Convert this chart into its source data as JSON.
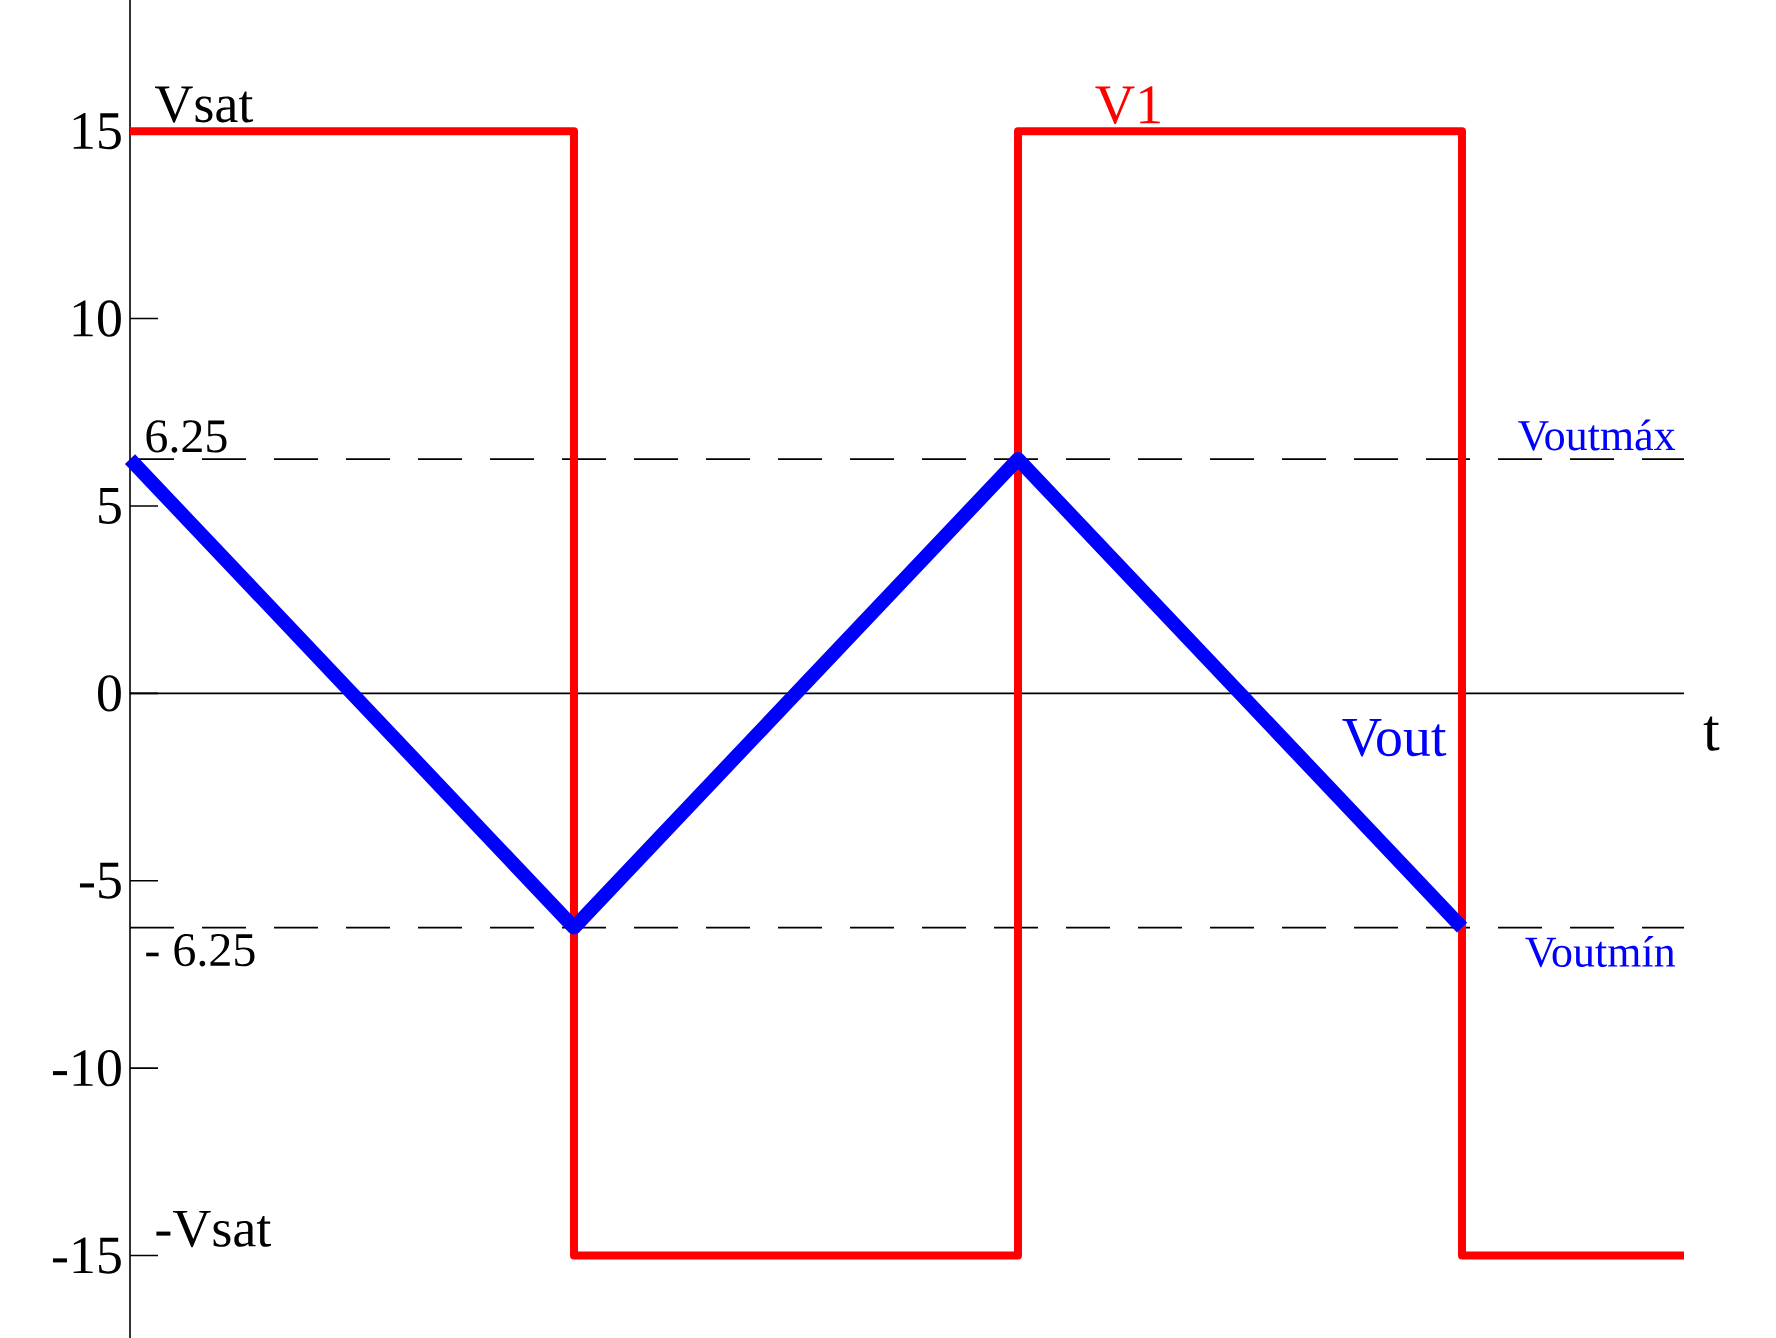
{
  "chart_data": {
    "type": "line",
    "xlabel": "t",
    "categories": [
      null,
      null,
      null,
      null,
      null,
      null,
      null,
      null
    ],
    "series": [
      {
        "name": "V1",
        "type": "step",
        "color": "#ff0000",
        "values": [
          15,
          15,
          -15,
          -15,
          15,
          15,
          -15,
          -15
        ]
      },
      {
        "name": "Vout",
        "color": "#0000ff",
        "values": [
          6.25,
          0,
          -6.25,
          0,
          6.25,
          0,
          -6.25,
          null
        ]
      }
    ],
    "ylim": [
      -17.2,
      18.5
    ],
    "yticks": [
      -15,
      -10,
      -5,
      0,
      5,
      10,
      15
    ],
    "tick_labels": "y",
    "grid": false,
    "legend": false,
    "marker": "none",
    "ref_lines": [
      {
        "axis": "y",
        "value": 0,
        "color": "#000000",
        "line_style": "solid"
      },
      {
        "axis": "y",
        "value": 6.25,
        "label": "6.25",
        "color": "#000000",
        "line_style": "dashed"
      },
      {
        "axis": "y",
        "value": -6.25,
        "label": "- 6.25",
        "color": "#000000",
        "line_style": "dashed"
      }
    ],
    "annotations": [
      "Vsat",
      "-Vsat",
      {
        "text": "Voutmáx",
        "y": 6.25
      },
      {
        "text": "Voutmín",
        "y": -6.25
      }
    ]
  }
}
